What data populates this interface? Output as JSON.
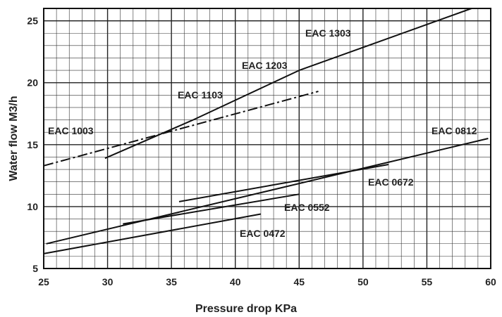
{
  "chart_data": {
    "type": "line",
    "title": "",
    "xlabel": "Pressure drop KPa",
    "ylabel": "Water flow M3/h",
    "xlim": [
      25,
      60
    ],
    "ylim": [
      5,
      26
    ],
    "grid": true,
    "x_ticks": [
      25,
      30,
      35,
      40,
      45,
      50,
      55,
      60
    ],
    "y_ticks": [
      5,
      10,
      15,
      20,
      25
    ],
    "colors": {
      "line": "#111111",
      "grid": "#333333"
    },
    "series": [
      {
        "name": "EAC 0472",
        "style": "solid",
        "x": [
          25.0,
          42.0
        ],
        "y": [
          6.2,
          9.4
        ]
      },
      {
        "name": "EAC 0552",
        "style": "solid",
        "x": [
          31.2,
          45.0
        ],
        "y": [
          8.6,
          11.0
        ]
      },
      {
        "name": "EAC 0672",
        "style": "solid",
        "x": [
          35.6,
          52.0
        ],
        "y": [
          10.4,
          13.4
        ]
      },
      {
        "name": "EAC 0812",
        "style": "solid",
        "x": [
          25.2,
          59.8
        ],
        "y": [
          7.0,
          15.5
        ]
      },
      {
        "name": "EAC 1003",
        "style": "dashdot",
        "x": [
          25.0,
          46.5
        ],
        "y": [
          13.3,
          19.3
        ]
      },
      {
        "name": "EAC 1103",
        "style": "solid",
        "x": [
          29.8,
          36.7
        ],
        "y": [
          13.9,
          17.0
        ]
      },
      {
        "name": "EAC 1203",
        "style": "solid",
        "x": [
          36.7,
          45.0
        ],
        "y": [
          17.0,
          21.0
        ]
      },
      {
        "name": "EAC 1303",
        "style": "solid",
        "x": [
          45.0,
          58.5
        ],
        "y": [
          21.0,
          26.0
        ]
      }
    ]
  }
}
